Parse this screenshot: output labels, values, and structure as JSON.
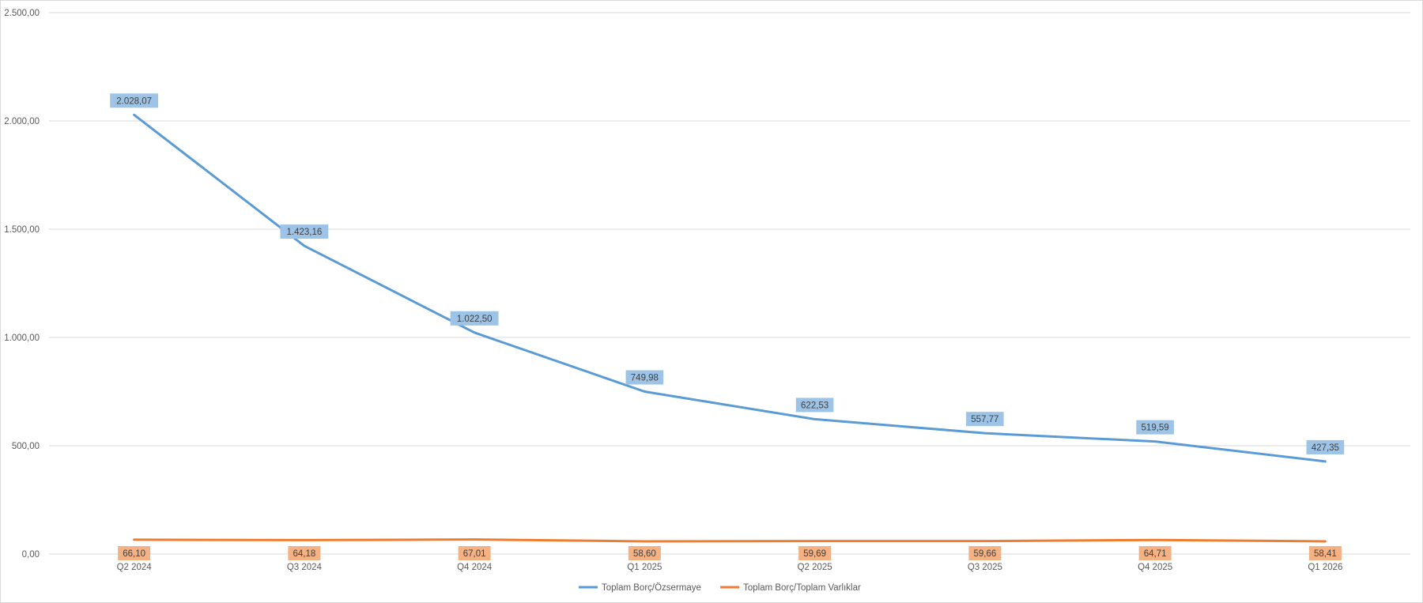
{
  "chart_data": {
    "type": "line",
    "title": "",
    "xlabel": "",
    "ylabel": "",
    "categories": [
      "Q2 2024",
      "Q3 2024",
      "Q4 2024",
      "Q1 2025",
      "Q2 2025",
      "Q3 2025",
      "Q4 2025",
      "Q1 2026"
    ],
    "ylim": [
      0,
      2500
    ],
    "yticks": [
      0,
      500,
      1000,
      1500,
      2000,
      2500
    ],
    "ytick_labels": [
      "0,00",
      "500,00",
      "1.000,00",
      "1.500,00",
      "2.000,00",
      "2.500,00"
    ],
    "grid": true,
    "legend_position": "bottom",
    "series": [
      {
        "name": "Toplam Borç/Özsermaye",
        "color": "#5B9BD5",
        "label_bg": "#9DC3E6",
        "values": [
          2028.07,
          1423.16,
          1022.5,
          749.98,
          622.53,
          557.77,
          519.59,
          427.35
        ],
        "labels": [
          "2.028,07",
          "1.423,16",
          "1.022,50",
          "749,98",
          "622,53",
          "557,77",
          "519,59",
          "427,35"
        ]
      },
      {
        "name": "Toplam Borç/Toplam Varlıklar",
        "color": "#ED7D31",
        "label_bg": "#F4B183",
        "values": [
          66.1,
          64.18,
          67.01,
          58.6,
          59.69,
          59.66,
          64.71,
          58.41
        ],
        "labels": [
          "66,10",
          "64,18",
          "67,01",
          "58,60",
          "59,69",
          "59,66",
          "64,71",
          "58,41"
        ]
      }
    ]
  }
}
